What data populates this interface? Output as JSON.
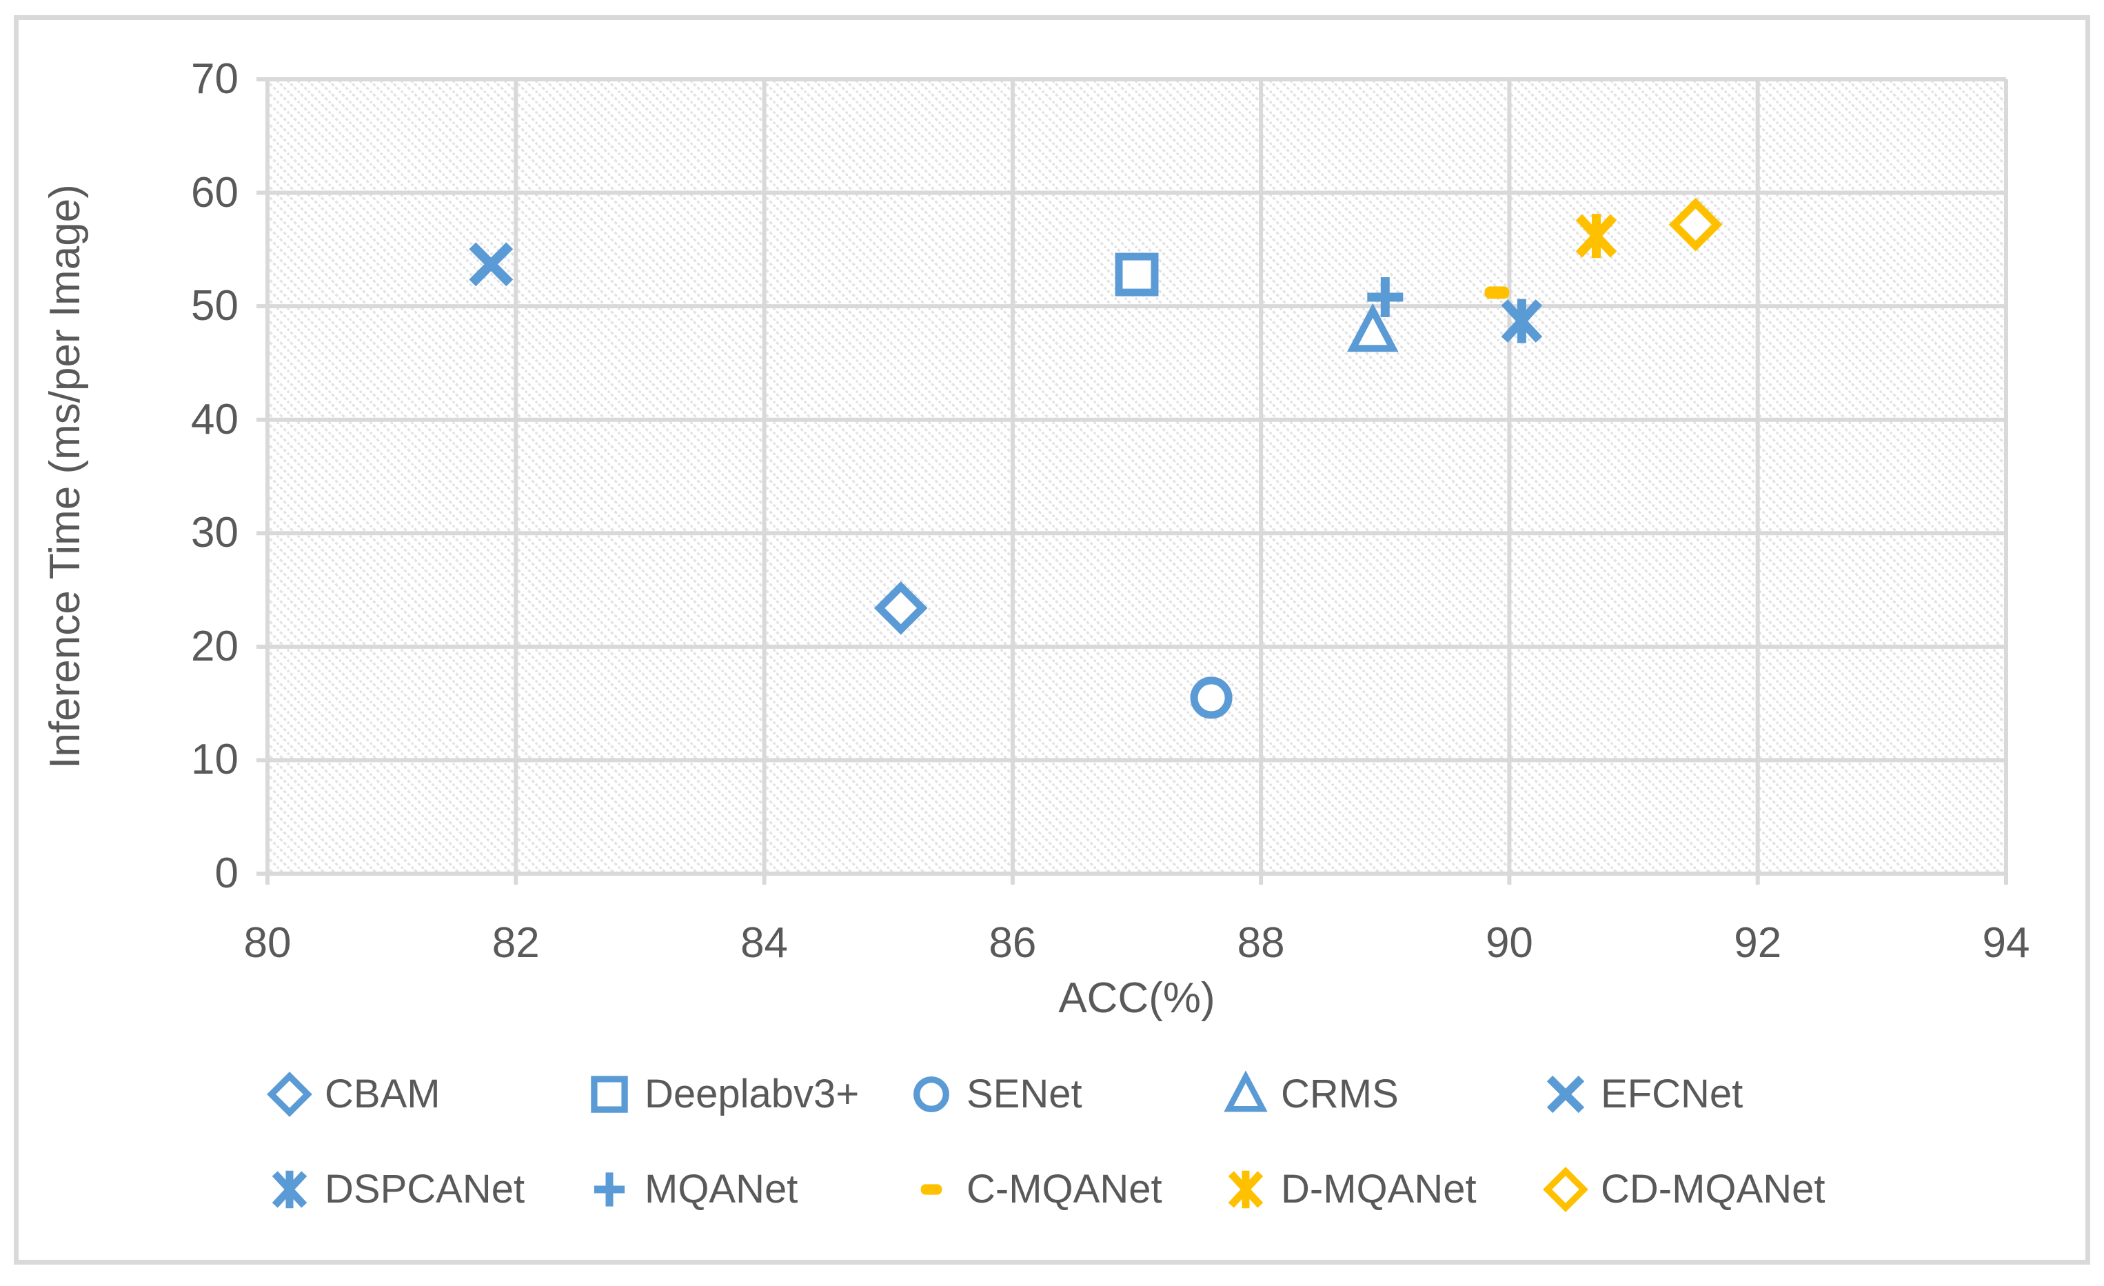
{
  "figure": {
    "background": "#FFFFFF",
    "border_color": "#D9D9D9",
    "gridline_color": "#D9D9D9",
    "axis_text_color": "#595959",
    "plot_pattern_color": "#E3E3E3"
  },
  "chart_data": {
    "type": "scatter",
    "title": "",
    "xlabel": "ACC(%)",
    "ylabel": "Inference Time (ms/per Image)",
    "xlim": [
      80,
      94
    ],
    "ylim": [
      0,
      70
    ],
    "xticks": [
      80,
      82,
      84,
      86,
      88,
      90,
      92,
      94
    ],
    "yticks": [
      0,
      10,
      20,
      30,
      40,
      50,
      60,
      70
    ],
    "grid": true,
    "plot_background": "diagonal-hatch",
    "legend_position": "bottom",
    "series": [
      {
        "name": "CBAM",
        "marker": "diamond",
        "color": "#5B9BD5",
        "points": [
          [
            85.1,
            23.4
          ]
        ]
      },
      {
        "name": "Deeplabv3+",
        "marker": "square",
        "color": "#5B9BD5",
        "points": [
          [
            87.0,
            52.8
          ]
        ]
      },
      {
        "name": "SENet",
        "marker": "circle",
        "color": "#5B9BD5",
        "points": [
          [
            87.6,
            15.5
          ]
        ]
      },
      {
        "name": "CRMS",
        "marker": "triangle",
        "color": "#5B9BD5",
        "points": [
          [
            88.9,
            47.8
          ]
        ]
      },
      {
        "name": "EFCNet",
        "marker": "x",
        "color": "#5B9BD5",
        "points": [
          [
            81.8,
            53.7
          ]
        ]
      },
      {
        "name": "DSPCANet",
        "marker": "star-x",
        "color": "#5B9BD5",
        "points": [
          [
            90.1,
            48.7
          ]
        ]
      },
      {
        "name": "MQANet",
        "marker": "plus",
        "color": "#5B9BD5",
        "points": [
          [
            89.0,
            50.8
          ]
        ]
      },
      {
        "name": "C-MQANet",
        "marker": "dash",
        "color": "#FFC000",
        "points": [
          [
            89.9,
            51.2
          ]
        ]
      },
      {
        "name": "D-MQANet",
        "marker": "star-x",
        "color": "#FFC000",
        "points": [
          [
            90.7,
            56.2
          ]
        ]
      },
      {
        "name": "CD-MQANet",
        "marker": "diamond",
        "color": "#FFC000",
        "points": [
          [
            91.5,
            57.2
          ]
        ]
      }
    ]
  }
}
